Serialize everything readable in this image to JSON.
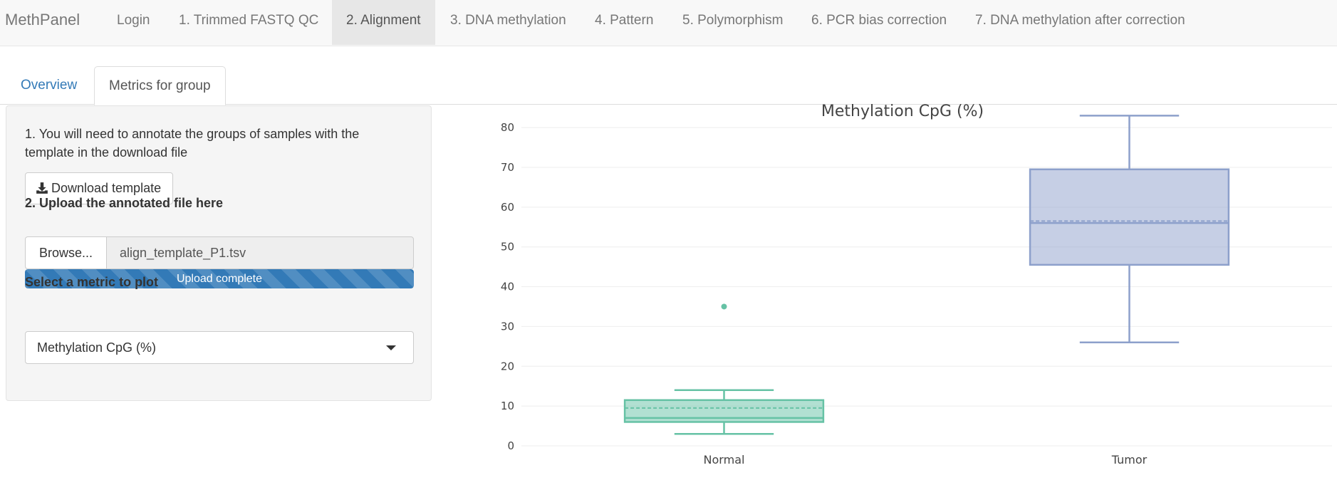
{
  "navbar": {
    "brand": "MethPanel",
    "items": [
      {
        "label": "Login"
      },
      {
        "label": "1. Trimmed FASTQ QC"
      },
      {
        "label": "2. Alignment"
      },
      {
        "label": "3. DNA methylation"
      },
      {
        "label": "4. Pattern"
      },
      {
        "label": "5. Polymorphism"
      },
      {
        "label": "6. PCR bias correction"
      },
      {
        "label": "7. DNA methylation after correction"
      }
    ],
    "active_index": 2
  },
  "subtabs": {
    "items": [
      {
        "label": "Overview"
      },
      {
        "label": "Metrics for group"
      }
    ],
    "active_index": 1
  },
  "panel": {
    "instruction": "1. You will need to annotate the groups of samples with the template in the download file",
    "download_label": "Download template",
    "upload_label": "2. Upload the annotated file here",
    "browse_label": "Browse...",
    "file_name": "align_template_P1.tsv",
    "progress_text": "Upload complete",
    "progress_value": 100,
    "select_label": "Select a metric to plot",
    "select_value": "Methylation CpG (%)"
  },
  "chart_data": {
    "type": "box",
    "title": "Methylation CpG (%)",
    "xlabel": "",
    "ylabel": "",
    "ylim": [
      0,
      87
    ],
    "yticks": [
      0,
      10,
      20,
      30,
      40,
      50,
      60,
      70,
      80
    ],
    "grid": true,
    "categories": [
      "Normal",
      "Tumor"
    ],
    "boxes": [
      {
        "category": "Normal",
        "min": 3,
        "q1": 6,
        "median": 7,
        "mean": 9.5,
        "q3": 11.5,
        "max": 14,
        "outliers": [
          35
        ],
        "color": "#66c2a5"
      },
      {
        "category": "Tumor",
        "min": 26,
        "q1": 45.5,
        "median": 56,
        "mean": 56.5,
        "q3": 69.5,
        "max": 83,
        "outliers": [],
        "color": "#8da0cb"
      }
    ]
  }
}
